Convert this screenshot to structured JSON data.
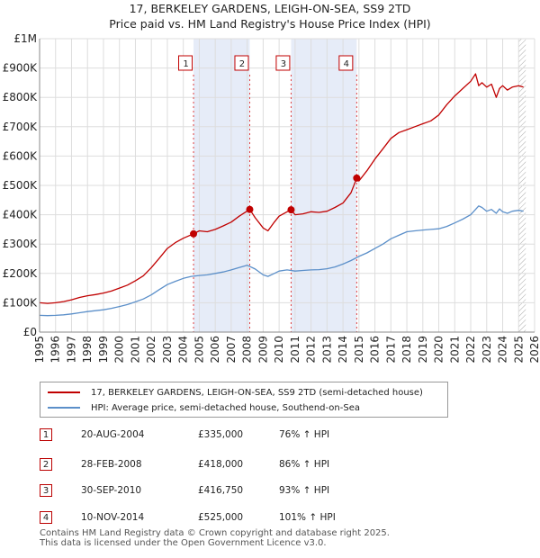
{
  "chart_data": {
    "type": "line",
    "title": "17, BERKELEY GARDENS, LEIGH-ON-SEA, SS9 2TD",
    "subtitle": "Price paid vs. HM Land Registry's House Price Index (HPI)",
    "xlim": [
      1995,
      2026
    ],
    "ylim": [
      0,
      1000000
    ],
    "x_ticks": [
      "1995",
      "1996",
      "1997",
      "1998",
      "1999",
      "2000",
      "2001",
      "2002",
      "2003",
      "2004",
      "2005",
      "2006",
      "2007",
      "2008",
      "2009",
      "2010",
      "2011",
      "2012",
      "2013",
      "2014",
      "2015",
      "2016",
      "2017",
      "2018",
      "2019",
      "2020",
      "2021",
      "2022",
      "2023",
      "2024",
      "2025",
      "2026"
    ],
    "y_ticks": [
      {
        "label": "£0",
        "value": 0
      },
      {
        "label": "£100K",
        "value": 100000
      },
      {
        "label": "£200K",
        "value": 200000
      },
      {
        "label": "£300K",
        "value": 300000
      },
      {
        "label": "£400K",
        "value": 400000
      },
      {
        "label": "£500K",
        "value": 500000
      },
      {
        "label": "£600K",
        "value": 600000
      },
      {
        "label": "£700K",
        "value": 700000
      },
      {
        "label": "£800K",
        "value": 800000
      },
      {
        "label": "£900K",
        "value": 900000
      },
      {
        "label": "£1M",
        "value": 1000000
      }
    ],
    "series": [
      {
        "name": "17, BERKELEY GARDENS, LEIGH-ON-SEA, SS9 2TD (semi-detached house)",
        "color": "#c00000",
        "x": [
          1995,
          1995.5,
          1996,
          1996.5,
          1997,
          1997.5,
          1998,
          1998.5,
          1999,
          1999.5,
          2000,
          2000.5,
          2001,
          2001.5,
          2002,
          2002.5,
          2003,
          2003.5,
          2004,
          2004.64,
          2005,
          2005.5,
          2006,
          2006.5,
          2007,
          2007.5,
          2008.16,
          2008.5,
          2009,
          2009.3,
          2009.7,
          2010,
          2010.5,
          2010.75,
          2011,
          2011.5,
          2012,
          2012.5,
          2013,
          2013.5,
          2014,
          2014.5,
          2014.86,
          2015,
          2015.5,
          2016,
          2016.5,
          2017,
          2017.5,
          2018,
          2018.5,
          2019,
          2019.5,
          2020,
          2020.5,
          2021,
          2021.5,
          2022,
          2022.3,
          2022.5,
          2022.7,
          2023,
          2023.3,
          2023.6,
          2023.8,
          2024,
          2024.3,
          2024.6,
          2025,
          2025.3
        ],
        "y": [
          100000,
          98000,
          100000,
          104000,
          110000,
          118000,
          124000,
          128000,
          133000,
          140000,
          150000,
          160000,
          175000,
          192000,
          220000,
          252000,
          285000,
          305000,
          320000,
          335000,
          345000,
          342000,
          350000,
          362000,
          375000,
          395000,
          418000,
          390000,
          355000,
          345000,
          375000,
          395000,
          410000,
          416750,
          400000,
          403000,
          410000,
          408000,
          412000,
          425000,
          440000,
          475000,
          525000,
          515000,
          550000,
          590000,
          625000,
          660000,
          680000,
          690000,
          700000,
          710000,
          720000,
          740000,
          775000,
          805000,
          830000,
          855000,
          880000,
          840000,
          850000,
          835000,
          845000,
          800000,
          830000,
          840000,
          825000,
          835000,
          840000,
          835000
        ]
      },
      {
        "name": "HPI: Average price, semi-detached house, Southend-on-Sea",
        "color": "#5b8fc9",
        "x": [
          1995,
          1995.5,
          1996,
          1996.5,
          1997,
          1997.5,
          1998,
          1998.5,
          1999,
          1999.5,
          2000,
          2000.5,
          2001,
          2001.5,
          2002,
          2002.5,
          2003,
          2003.5,
          2004,
          2004.5,
          2005,
          2005.5,
          2006,
          2006.5,
          2007,
          2007.5,
          2008,
          2008.5,
          2009,
          2009.3,
          2009.7,
          2010,
          2010.5,
          2011,
          2011.5,
          2012,
          2012.5,
          2013,
          2013.5,
          2014,
          2014.5,
          2015,
          2015.5,
          2016,
          2016.5,
          2017,
          2017.5,
          2018,
          2018.5,
          2019,
          2019.5,
          2020,
          2020.5,
          2021,
          2021.5,
          2022,
          2022.3,
          2022.5,
          2022.7,
          2023,
          2023.3,
          2023.6,
          2023.8,
          2024,
          2024.3,
          2024.6,
          2025,
          2025.3
        ],
        "y": [
          57000,
          56000,
          57000,
          59000,
          62000,
          66000,
          70000,
          73000,
          76000,
          81000,
          87000,
          94000,
          103000,
          113000,
          127000,
          145000,
          162000,
          173000,
          183000,
          190000,
          193000,
          195000,
          200000,
          205000,
          212000,
          220000,
          228000,
          215000,
          195000,
          190000,
          200000,
          208000,
          212000,
          208000,
          210000,
          212000,
          213000,
          216000,
          222000,
          232000,
          244000,
          258000,
          270000,
          285000,
          300000,
          318000,
          330000,
          342000,
          345000,
          348000,
          350000,
          352000,
          360000,
          372000,
          385000,
          400000,
          418000,
          430000,
          425000,
          412000,
          418000,
          405000,
          420000,
          410000,
          405000,
          412000,
          415000,
          412000
        ]
      }
    ],
    "sales": [
      {
        "marker": "1",
        "date": "20-AUG-2004",
        "price": "£335,000",
        "hpi": "76% ↑ HPI",
        "x": 2004.64,
        "y": 335000
      },
      {
        "marker": "2",
        "date": "28-FEB-2008",
        "price": "£418,000",
        "hpi": "86% ↑ HPI",
        "x": 2008.16,
        "y": 418000
      },
      {
        "marker": "3",
        "date": "30-SEP-2010",
        "price": "£416,750",
        "hpi": "93% ↑ HPI",
        "x": 2010.75,
        "y": 416750
      },
      {
        "marker": "4",
        "date": "10-NOV-2014",
        "price": "£525,000",
        "hpi": "101% ↑ HPI",
        "x": 2014.86,
        "y": 525000
      }
    ],
    "highlight_spans": [
      [
        2004.64,
        2008.16
      ],
      [
        2010.75,
        2014.86
      ]
    ],
    "forecast_from": 2025.0
  },
  "legend": {
    "property_label": "17, BERKELEY GARDENS, LEIGH-ON-SEA, SS9 2TD (semi-detached house)",
    "hpi_label": "HPI: Average price, semi-detached house, Southend-on-Sea"
  },
  "footer": {
    "line1": "Contains HM Land Registry data © Crown copyright and database right 2025.",
    "line2": "This data is licensed under the Open Government Licence v3.0."
  }
}
